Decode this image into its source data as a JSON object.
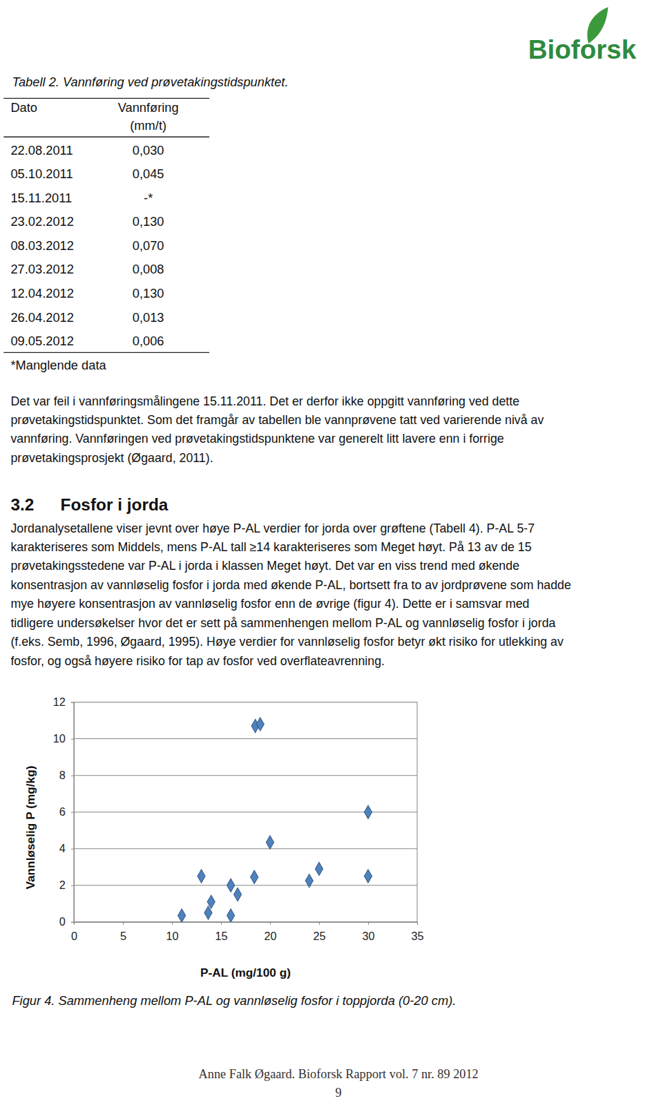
{
  "logo": "Bioforsk",
  "table": {
    "caption": "Tabell 2. Vannføring ved prøvetakingstidspunktet.",
    "columns": [
      [
        "Dato"
      ],
      [
        "Vannføring",
        "(mm/t)"
      ]
    ],
    "rows": [
      [
        "22.08.2011",
        "0,030"
      ],
      [
        "05.10.2011",
        "0,045"
      ],
      [
        "15.11.2011",
        "-*"
      ],
      [
        "23.02.2012",
        "0,130"
      ],
      [
        "08.03.2012",
        "0,070"
      ],
      [
        "27.03.2012",
        "0,008"
      ],
      [
        "12.04.2012",
        "0,130"
      ],
      [
        "26.04.2012",
        "0,013"
      ],
      [
        "09.05.2012",
        "0,006"
      ]
    ],
    "note": "*Manglende data"
  },
  "text1": [
    "Det var feil i vannføringsmålingene 15.11.2011. Det er derfor ikke oppgitt vannføring ved dette",
    "prøvetakingstidspunktet. Som det framgår av tabellen ble vannprøvene tatt ved varierende nivå av",
    "vannføring. Vannføringen ved prøvetakingstidspunktene var generelt litt lavere enn i forrige",
    "prøvetakingsprosjekt (Øgaard, 2011)."
  ],
  "section": {
    "number": "3.2",
    "title": "Fosfor i jorda",
    "text": [
      "Jordanalysetallene viser jevnt over høye P-AL verdier for jorda over grøftene (Tabell 4). P-AL 5-7",
      "karakteriseres som Middels, mens P-AL tall ≥14 karakteriseres som Meget høyt. På 13 av de 15",
      "prøvetakingsstedene var P-AL i jorda i klassen Meget høyt. Det var en viss trend med økende",
      "konsentrasjon av vannløselig fosfor i jorda med økende P-AL, bortsett fra to av jordprøvene som hadde",
      "mye høyere konsentrasjon av vannløselig fosfor enn de øvrige (figur 4). Dette er i samsvar med",
      "tidligere undersøkelser hvor det er sett på sammenhengen mellom P-AL og vannløselig fosfor i jorda",
      "(f.eks. Semb, 1996, Øgaard, 1995).  Høye verdier for vannløselig fosfor betyr økt risiko for utlekking av",
      "fosfor, og også høyere risiko for tap av fosfor ved overflateavrenning."
    ]
  },
  "chart_data": {
    "type": "scatter",
    "title": "Figur 4. Sammenheng mellom P-AL og vannløselig fosfor i toppjorda (0-20 cm).",
    "x_label": "P-AL (mg/100 g)",
    "y_label": "Vannløselig P (mg/kg)",
    "x": [
      11.0,
      13.0,
      13.7,
      14.0,
      16.0,
      16.0,
      16.7,
      18.4,
      18.5,
      19.0,
      20.0,
      24.0,
      25.0,
      30.0,
      30.0
    ],
    "values": [
      0.35,
      2.5,
      0.5,
      1.1,
      2.0,
      0.35,
      1.5,
      2.45,
      10.7,
      10.8,
      4.35,
      2.25,
      2.9,
      6.0,
      2.5
    ],
    "xlim": [
      0,
      35
    ],
    "ylim": [
      0,
      12
    ],
    "xticks": [
      0,
      5,
      10,
      15,
      20,
      25,
      30,
      35
    ],
    "yticks": [
      0,
      2,
      4,
      6,
      8,
      10,
      12
    ],
    "grid": true,
    "color": "#4f81bd",
    "marker": "diamond"
  },
  "footer": {
    "text": "Anne Falk Øgaard. Bioforsk Rapport vol. 7 nr. 89 2012",
    "page": "9"
  }
}
